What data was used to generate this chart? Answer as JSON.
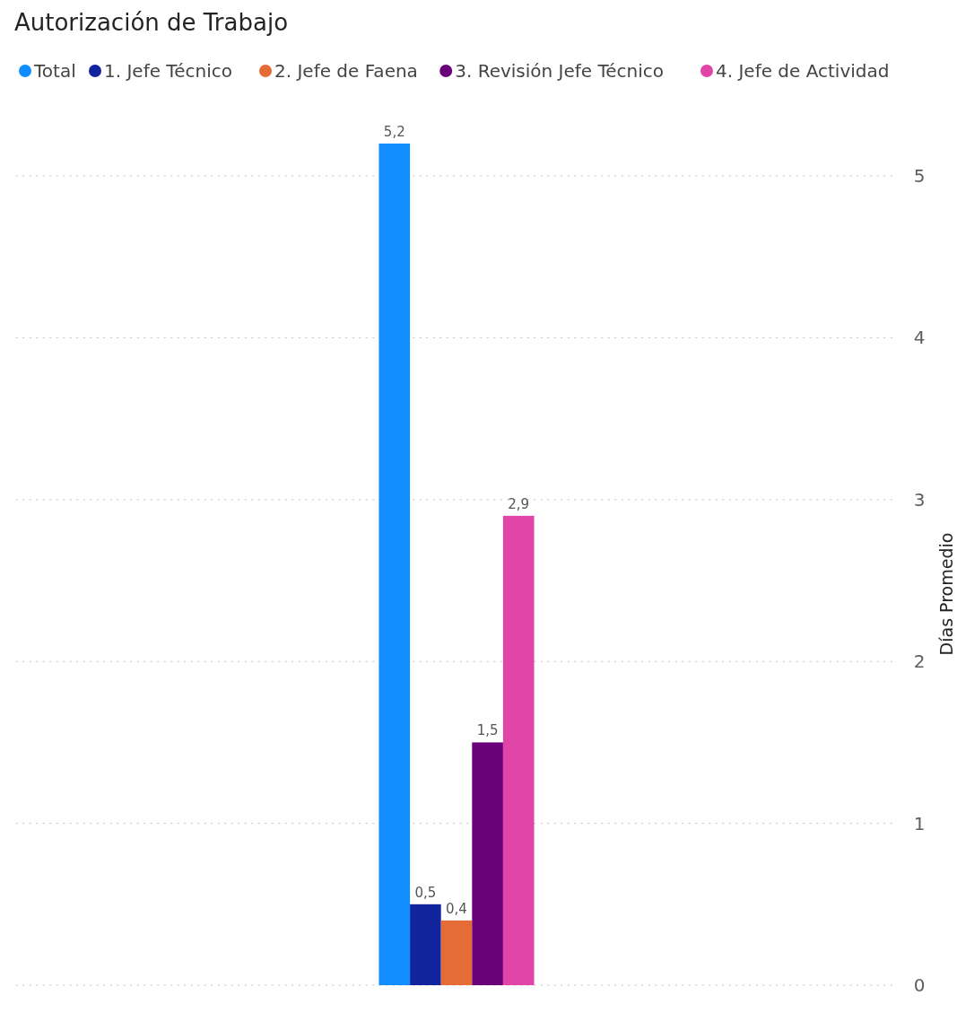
{
  "chart_data": {
    "type": "bar",
    "title": "Autorización de Trabajo",
    "ylabel": "Días Promedio",
    "categories": [
      null
    ],
    "series": [
      {
        "name": "Total",
        "color": "#118dff",
        "values": [
          5.2
        ],
        "value_labels": [
          "5,2"
        ]
      },
      {
        "name": "1. Jefe Técnico",
        "color": "#12239e",
        "values": [
          0.5
        ],
        "value_labels": [
          "0,5"
        ]
      },
      {
        "name": "2. Jefe de Faena",
        "color": "#e66c37",
        "values": [
          0.4
        ],
        "value_labels": [
          "0,4"
        ]
      },
      {
        "name": "3. Revisión Jefe Técnico",
        "color": "#6b007b",
        "values": [
          1.5
        ],
        "value_labels": [
          "1,5"
        ]
      },
      {
        "name": "4. Jefe de Actividad",
        "color": "#e044a7",
        "values": [
          2.9
        ],
        "value_labels": [
          "2,9"
        ]
      }
    ],
    "ylim": [
      0,
      5.2
    ],
    "yticks": [
      0,
      1,
      2,
      3,
      4,
      5
    ],
    "grid": "y",
    "legend": "top left"
  }
}
